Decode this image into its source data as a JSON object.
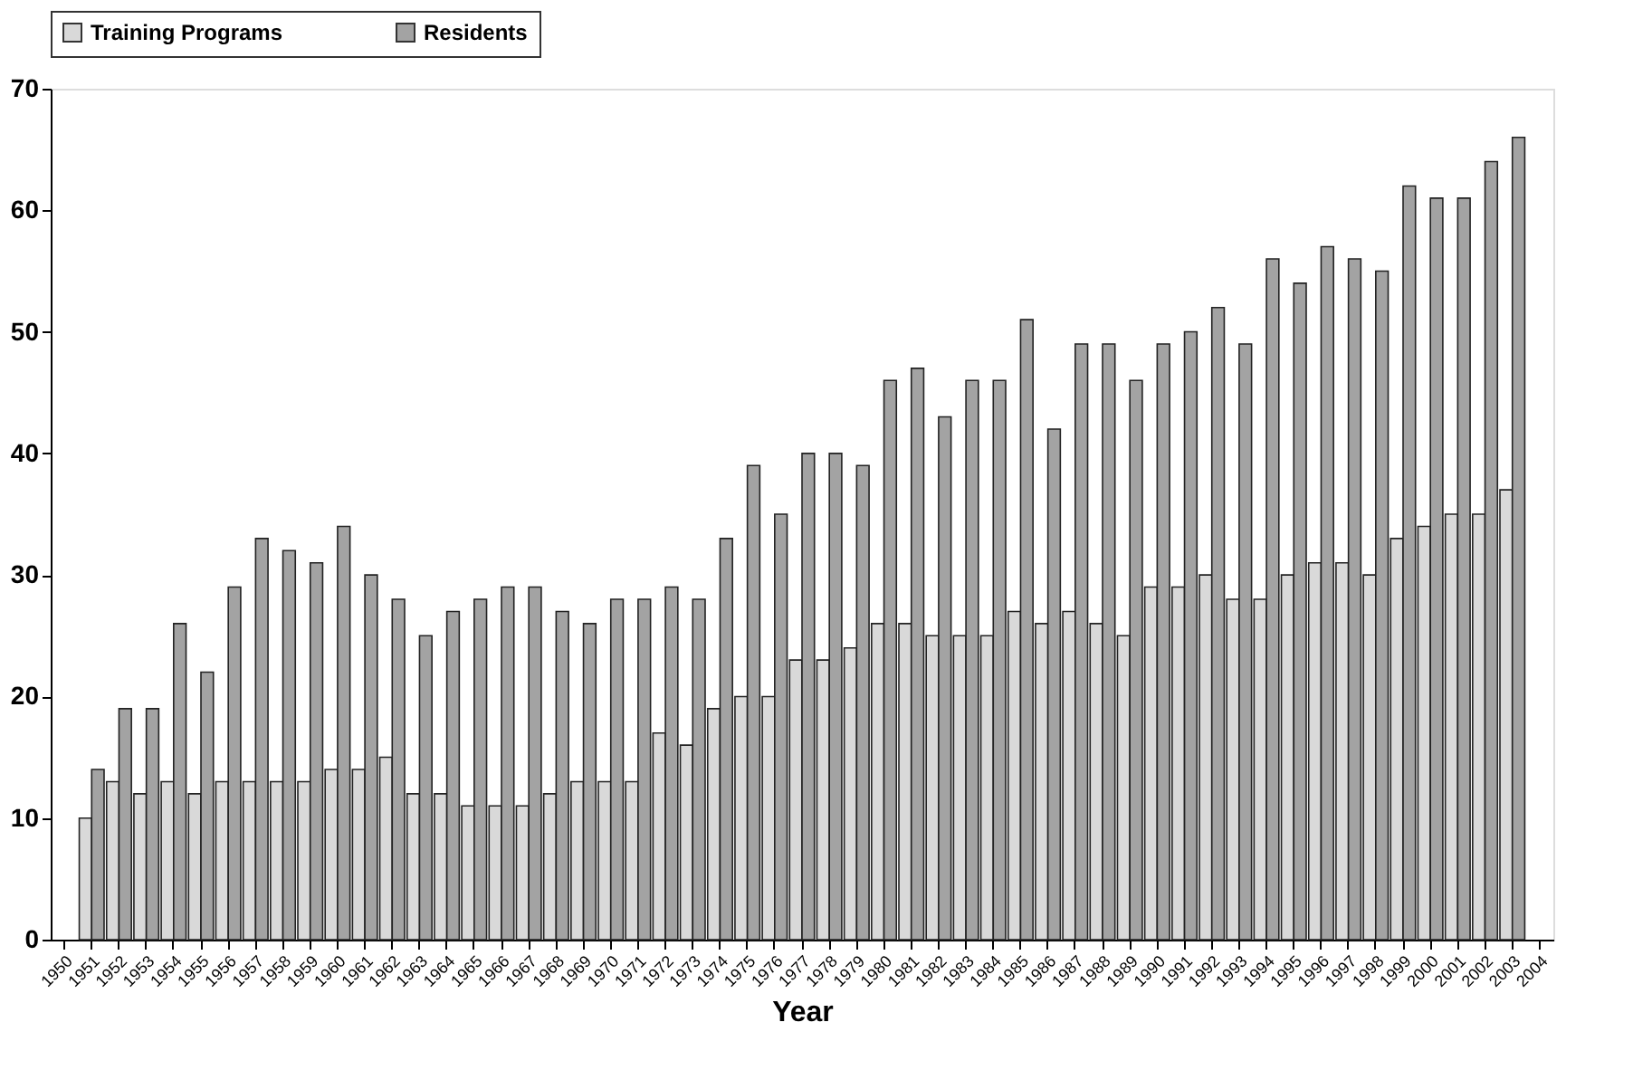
{
  "chart_data": {
    "type": "bar",
    "xlabel": "Year",
    "categories": [
      "1950",
      "1951",
      "1952",
      "1953",
      "1954",
      "1955",
      "1956",
      "1957",
      "1958",
      "1959",
      "1960",
      "1961",
      "1962",
      "1963",
      "1964",
      "1965",
      "1966",
      "1967",
      "1968",
      "1969",
      "1970",
      "1971",
      "1972",
      "1973",
      "1974",
      "1975",
      "1976",
      "1977",
      "1978",
      "1979",
      "1980",
      "1981",
      "1982",
      "1983",
      "1984",
      "1985",
      "1986",
      "1987",
      "1988",
      "1989",
      "1990",
      "1991",
      "1992",
      "1993",
      "1994",
      "1995",
      "1996",
      "1997",
      "1998",
      "1999",
      "2000",
      "2001",
      "2002",
      "2003",
      "2004"
    ],
    "series": [
      {
        "name": "Training Programs",
        "color": "#d9d9d9",
        "values": [
          null,
          10,
          13,
          12,
          13,
          12,
          13,
          13,
          13,
          13,
          14,
          14,
          15,
          12,
          12,
          11,
          11,
          11,
          12,
          13,
          13,
          13,
          17,
          16,
          19,
          20,
          20,
          23,
          23,
          24,
          26,
          26,
          25,
          25,
          25,
          27,
          26,
          27,
          26,
          25,
          29,
          29,
          30,
          28,
          28,
          30,
          31,
          31,
          30,
          33,
          34,
          35,
          35,
          37,
          null
        ]
      },
      {
        "name": "Residents",
        "color": "#a3a3a3",
        "values": [
          null,
          14,
          19,
          19,
          26,
          22,
          29,
          33,
          32,
          31,
          34,
          30,
          28,
          25,
          27,
          28,
          29,
          29,
          27,
          26,
          28,
          28,
          29,
          28,
          33,
          39,
          35,
          40,
          40,
          39,
          46,
          47,
          43,
          46,
          46,
          51,
          42,
          49,
          49,
          46,
          49,
          50,
          52,
          49,
          56,
          54,
          57,
          56,
          55,
          62,
          61,
          61,
          64,
          66,
          null
        ]
      }
    ],
    "ylim": [
      0,
      70
    ],
    "yticks": [
      0,
      10,
      20,
      30,
      40,
      50,
      60,
      70
    ],
    "grid": false,
    "legend": "top"
  }
}
